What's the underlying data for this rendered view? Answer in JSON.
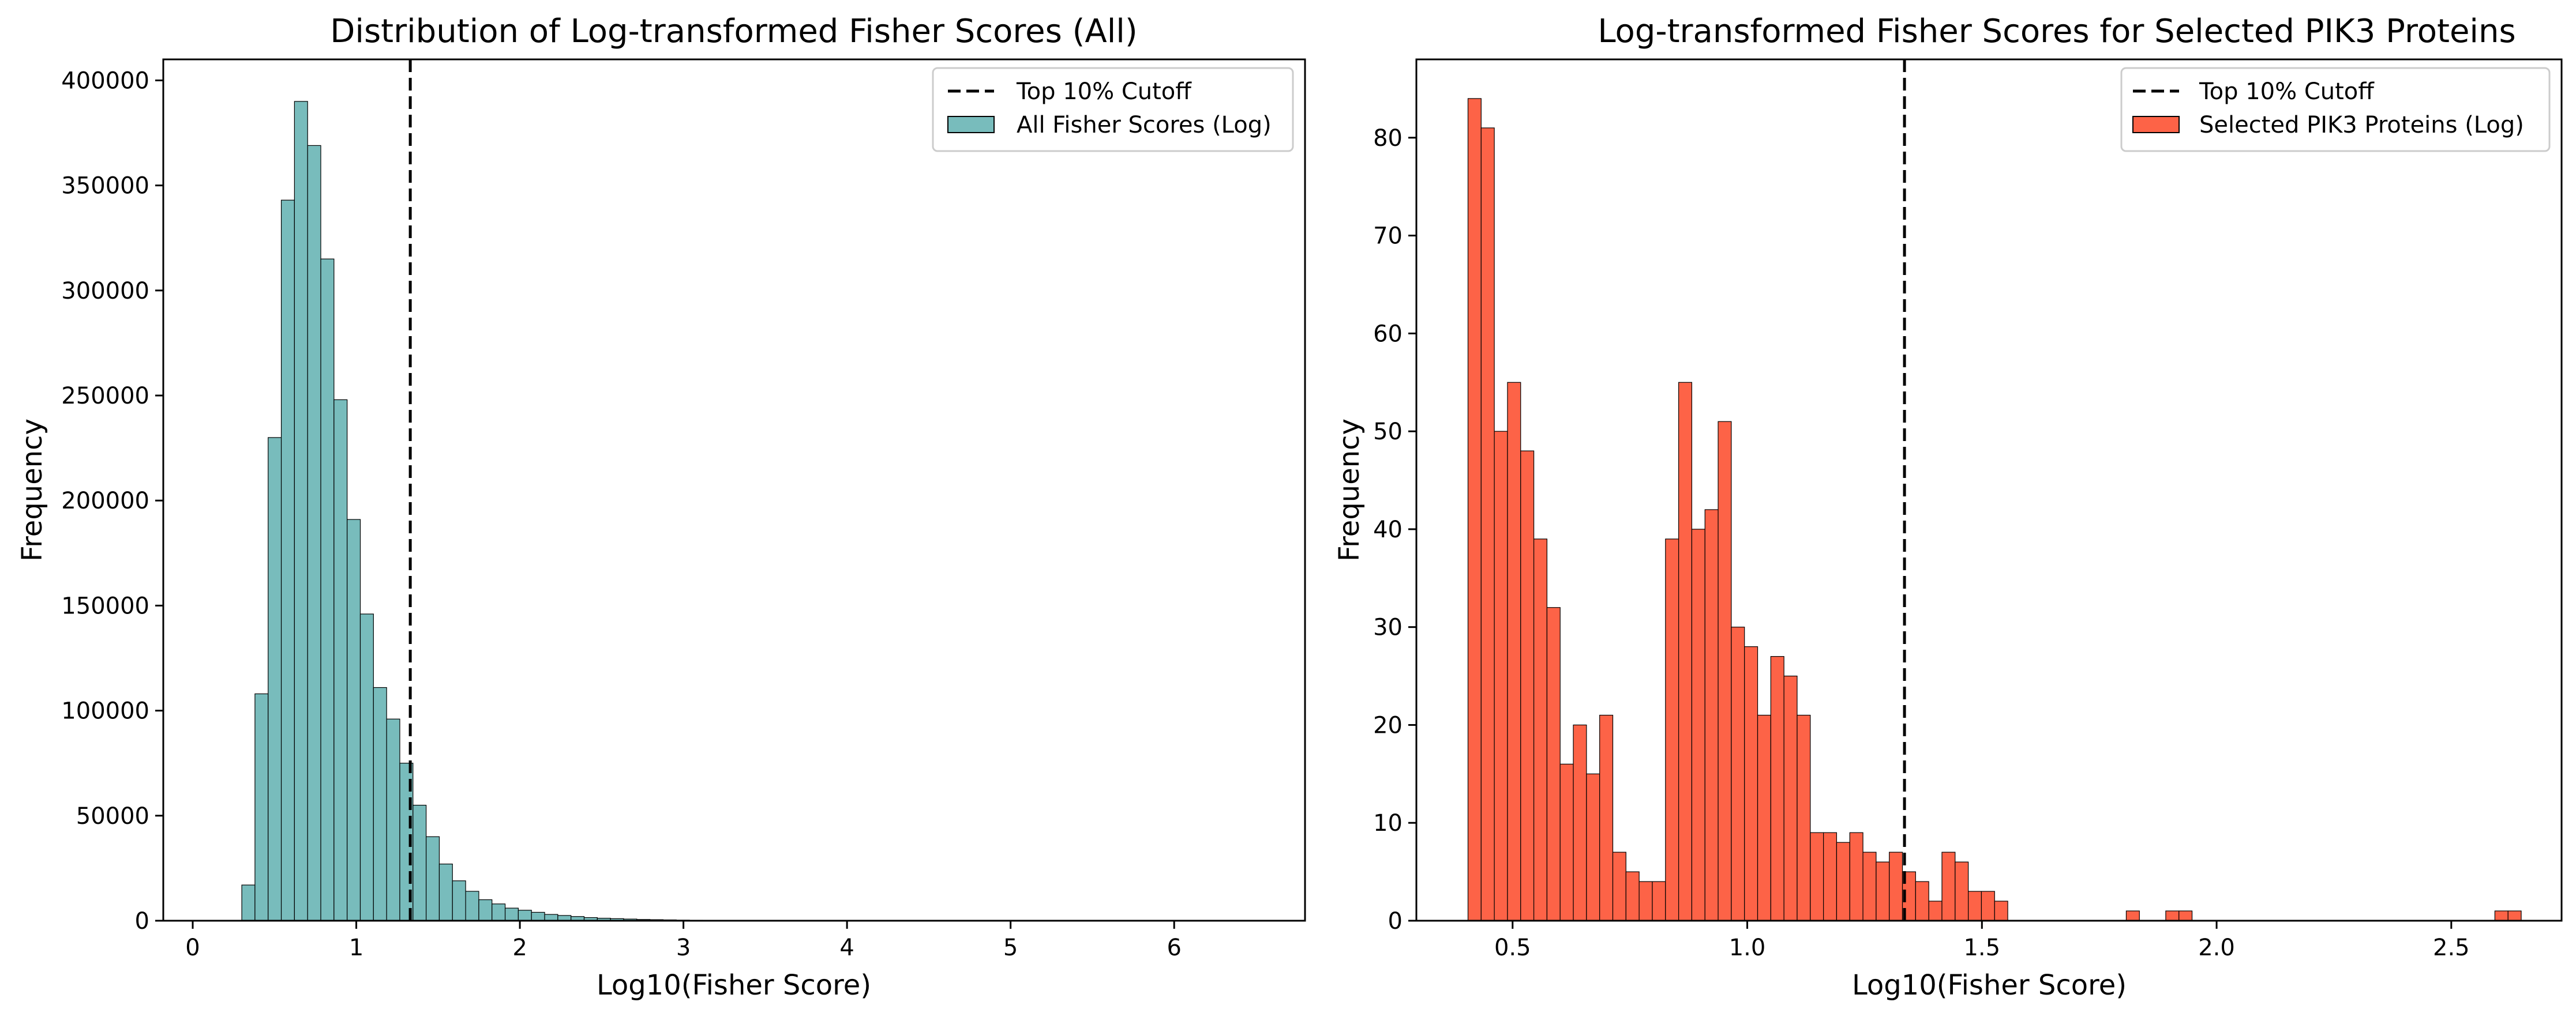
{
  "chart_data": [
    {
      "type": "bar",
      "title": "Distribution of Log-transformed Fisher Scores (All)",
      "xlabel": "Log10(Fisher Score)",
      "ylabel": "Frequency",
      "xlim": [
        -0.18,
        6.8
      ],
      "ylim": [
        0,
        410000
      ],
      "xticks": [
        0,
        1,
        2,
        3,
        4,
        5,
        6
      ],
      "yticks": [
        0,
        50000,
        100000,
        150000,
        200000,
        250000,
        300000,
        350000,
        400000
      ],
      "cutoff": 1.33,
      "cutoff_label": "Top 10% Cutoff",
      "series": [
        {
          "name": "All Fisher Scores (Log)",
          "color": "#78bcbc"
        }
      ],
      "bin_width": 0.0805,
      "bin_start": 0.3,
      "values": [
        17000,
        108000,
        230000,
        343000,
        390000,
        369000,
        315000,
        248000,
        191000,
        146000,
        111000,
        96000,
        75000,
        55000,
        40000,
        27000,
        19000,
        14000,
        10000,
        8000,
        6000,
        5000,
        4000,
        3000,
        2500,
        2000,
        1500,
        1200,
        1000,
        800,
        600,
        500,
        400,
        300,
        250,
        200,
        150,
        120,
        100,
        80,
        60,
        50,
        40,
        30,
        25,
        20,
        15,
        12,
        10,
        8,
        6,
        5,
        4,
        3,
        2,
        2,
        1,
        1,
        1,
        1,
        1,
        1,
        1,
        1,
        1,
        1,
        1,
        1,
        1,
        1,
        1,
        1,
        1,
        1,
        1,
        1
      ],
      "legend_position": "upper right",
      "grid": false
    },
    {
      "type": "bar",
      "title": "Log-transformed Fisher Scores for Selected PIK3 Proteins",
      "xlabel": "Log10(Fisher Score)",
      "ylabel": "Frequency",
      "xlim": [
        0.295,
        2.735
      ],
      "ylim": [
        0,
        88
      ],
      "xticks": [
        0.5,
        1.0,
        1.5,
        2.0,
        2.5
      ],
      "xtick_labels": [
        "0.5",
        "1.0",
        "1.5",
        "2.0",
        "2.5"
      ],
      "yticks": [
        0,
        10,
        20,
        30,
        40,
        50,
        60,
        70,
        80
      ],
      "cutoff": 1.335,
      "cutoff_label": "Top 10% Cutoff",
      "series": [
        {
          "name": "Selected PIK3 Proteins (Log)",
          "color": "#fd6347"
        }
      ],
      "bin_width": 0.02805,
      "bin_start": 0.405,
      "values": [
        84,
        81,
        50,
        55,
        48,
        39,
        32,
        16,
        20,
        15,
        21,
        7,
        5,
        4,
        4,
        39,
        55,
        40,
        42,
        51,
        30,
        28,
        21,
        27,
        25,
        21,
        9,
        9,
        8,
        9,
        7,
        6,
        7,
        5,
        4,
        2,
        7,
        6,
        3,
        3,
        2,
        0,
        0,
        0,
        0,
        0,
        0,
        0,
        0,
        0,
        1,
        0,
        0,
        1,
        1,
        0,
        0,
        0,
        0,
        0,
        0,
        0,
        0,
        0,
        0,
        0,
        0,
        0,
        0,
        0,
        0,
        0,
        0,
        0,
        0,
        0,
        0,
        0,
        1,
        1
      ],
      "legend_position": "upper right",
      "grid": false
    }
  ]
}
